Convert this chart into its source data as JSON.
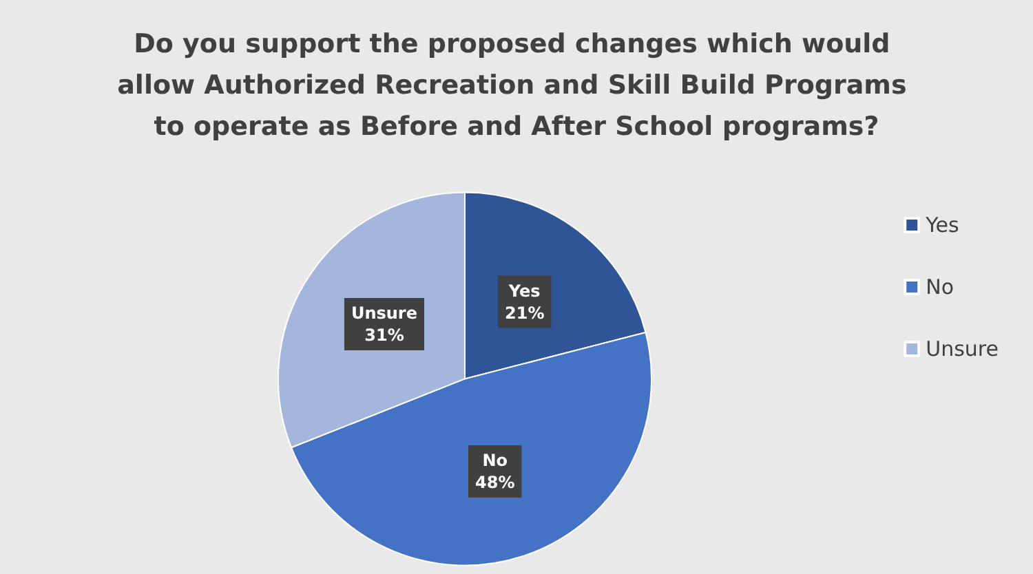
{
  "chart_data": {
    "type": "pie",
    "title": "Do you support the proposed changes which would allow Authorized Recreation and Skill Build Programs to operate as Before and After School programs?",
    "categories": [
      "Yes",
      "No",
      "Unsure"
    ],
    "values": [
      21,
      48,
      31
    ],
    "colors": [
      "#2f5597",
      "#4472c4",
      "#a5b6dd"
    ],
    "value_labels": [
      "21%",
      "48%",
      "31%"
    ],
    "legend": "right"
  }
}
